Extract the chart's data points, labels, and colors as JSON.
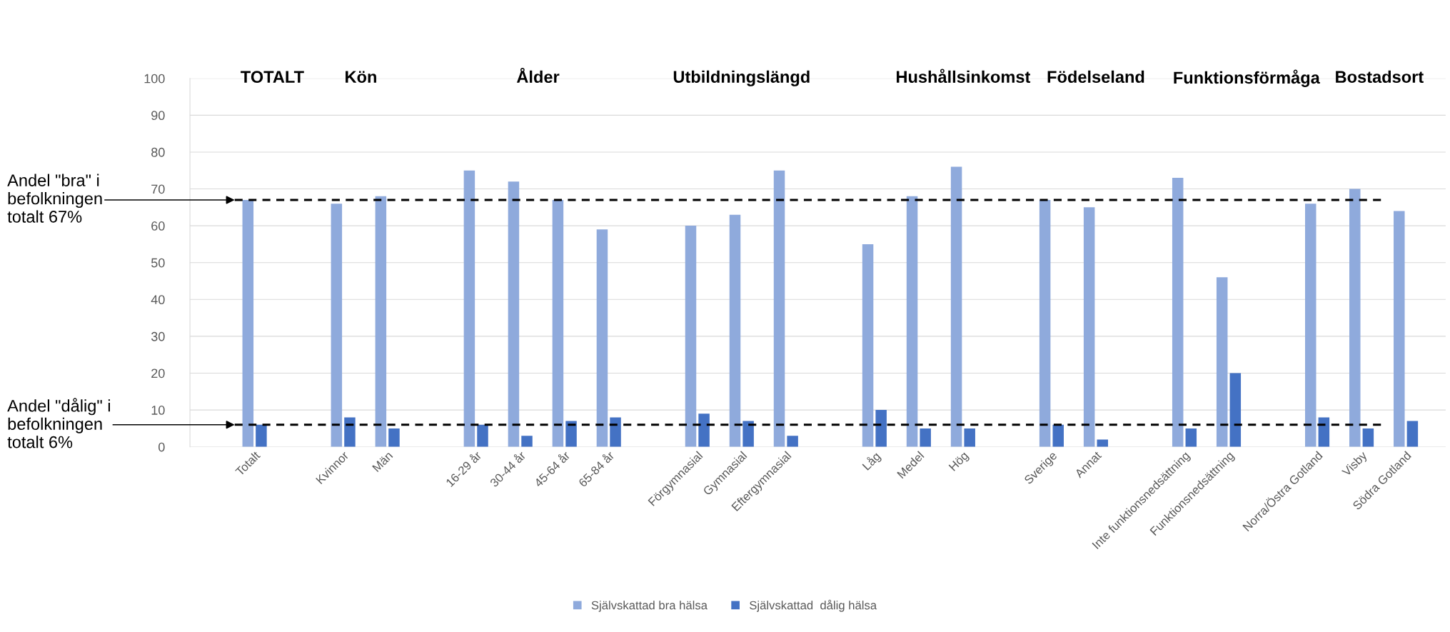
{
  "chart_data": {
    "type": "bar",
    "categories": [
      "Totalt",
      null,
      "Kvinnor",
      "Män",
      null,
      "16-29 år",
      "30-44 år",
      "45-64 år",
      "65-84 år",
      null,
      "Förgymnasial",
      "Gymnasial",
      "Eftergymnasial",
      null,
      "Låg",
      "Medel",
      "Hög",
      null,
      "Sverige",
      "Annat",
      null,
      "Inte funktionsnedsättning",
      "Funktionsnedsättning",
      null,
      "Norra/Östra Gotland",
      "Visby",
      "Södra Gotland"
    ],
    "series": [
      {
        "name": "Självskattad bra hälsa",
        "color": "#8faadc",
        "values": [
          67,
          null,
          66,
          68,
          null,
          75,
          72,
          67,
          59,
          null,
          60,
          63,
          75,
          null,
          55,
          68,
          76,
          null,
          67,
          65,
          null,
          73,
          46,
          null,
          66,
          70,
          64
        ]
      },
      {
        "name": "Självskattad  dålig hälsa",
        "color": "#4472c4",
        "values": [
          6,
          null,
          8,
          5,
          null,
          6,
          3,
          7,
          8,
          null,
          9,
          7,
          3,
          null,
          10,
          5,
          5,
          null,
          6,
          2,
          null,
          5,
          20,
          null,
          8,
          5,
          7
        ]
      }
    ],
    "ylim": [
      0,
      100
    ],
    "yticks": [
      0,
      10,
      20,
      30,
      40,
      50,
      60,
      70,
      80,
      90,
      100
    ],
    "grid": "y",
    "legend": "bottom",
    "ref_lines": [
      {
        "axis": "y",
        "value": 67,
        "label": "Andel \"bra\" i\nbefolkningen\ntotalt 67%",
        "color": "#000000",
        "line_style": "dashed"
      },
      {
        "axis": "y",
        "value": 6,
        "label": "Andel \"dålig\" i\nbefolkningen\ntotalt 6%",
        "color": "#000000",
        "line_style": "dashed"
      }
    ],
    "annotations": [
      "TOTALT",
      "Kön",
      "Ålder",
      "Utbildningslängd",
      "Hushållsinkomst",
      "Födelseland",
      "Funktionsförmåga",
      "Bostadsort"
    ]
  }
}
